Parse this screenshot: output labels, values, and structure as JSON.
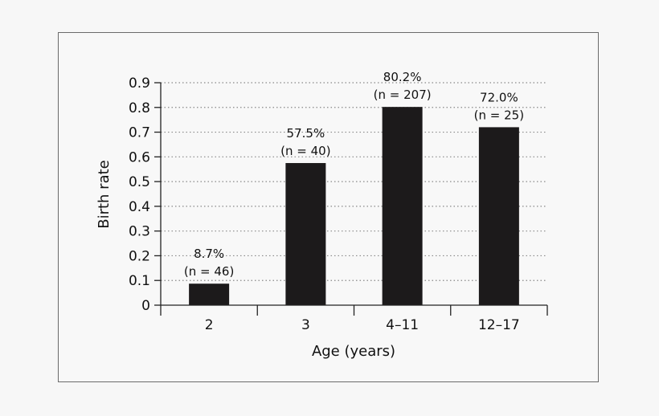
{
  "chart_data": {
    "type": "bar",
    "categories": [
      "2",
      "3",
      "4–11",
      "12–17"
    ],
    "values": [
      0.087,
      0.575,
      0.802,
      0.72
    ],
    "data_labels": [
      [
        "8.7%",
        "(n = 46)"
      ],
      [
        "57.5%",
        "(n = 40)"
      ],
      [
        "80.2%",
        "(n = 207)"
      ],
      [
        "72.0%",
        "(n = 25)"
      ]
    ],
    "title": "",
    "xlabel": "Age (years)",
    "ylabel": "Birth rate",
    "ylim": [
      0,
      0.9
    ],
    "yticks": [
      "0",
      "0.1",
      "0.2",
      "0.3",
      "0.4",
      "0.5",
      "0.6",
      "0.7",
      "0.8",
      "0.9"
    ],
    "grid": true,
    "bar_color": "#1c1a1b",
    "grid_color": "#888888"
  }
}
